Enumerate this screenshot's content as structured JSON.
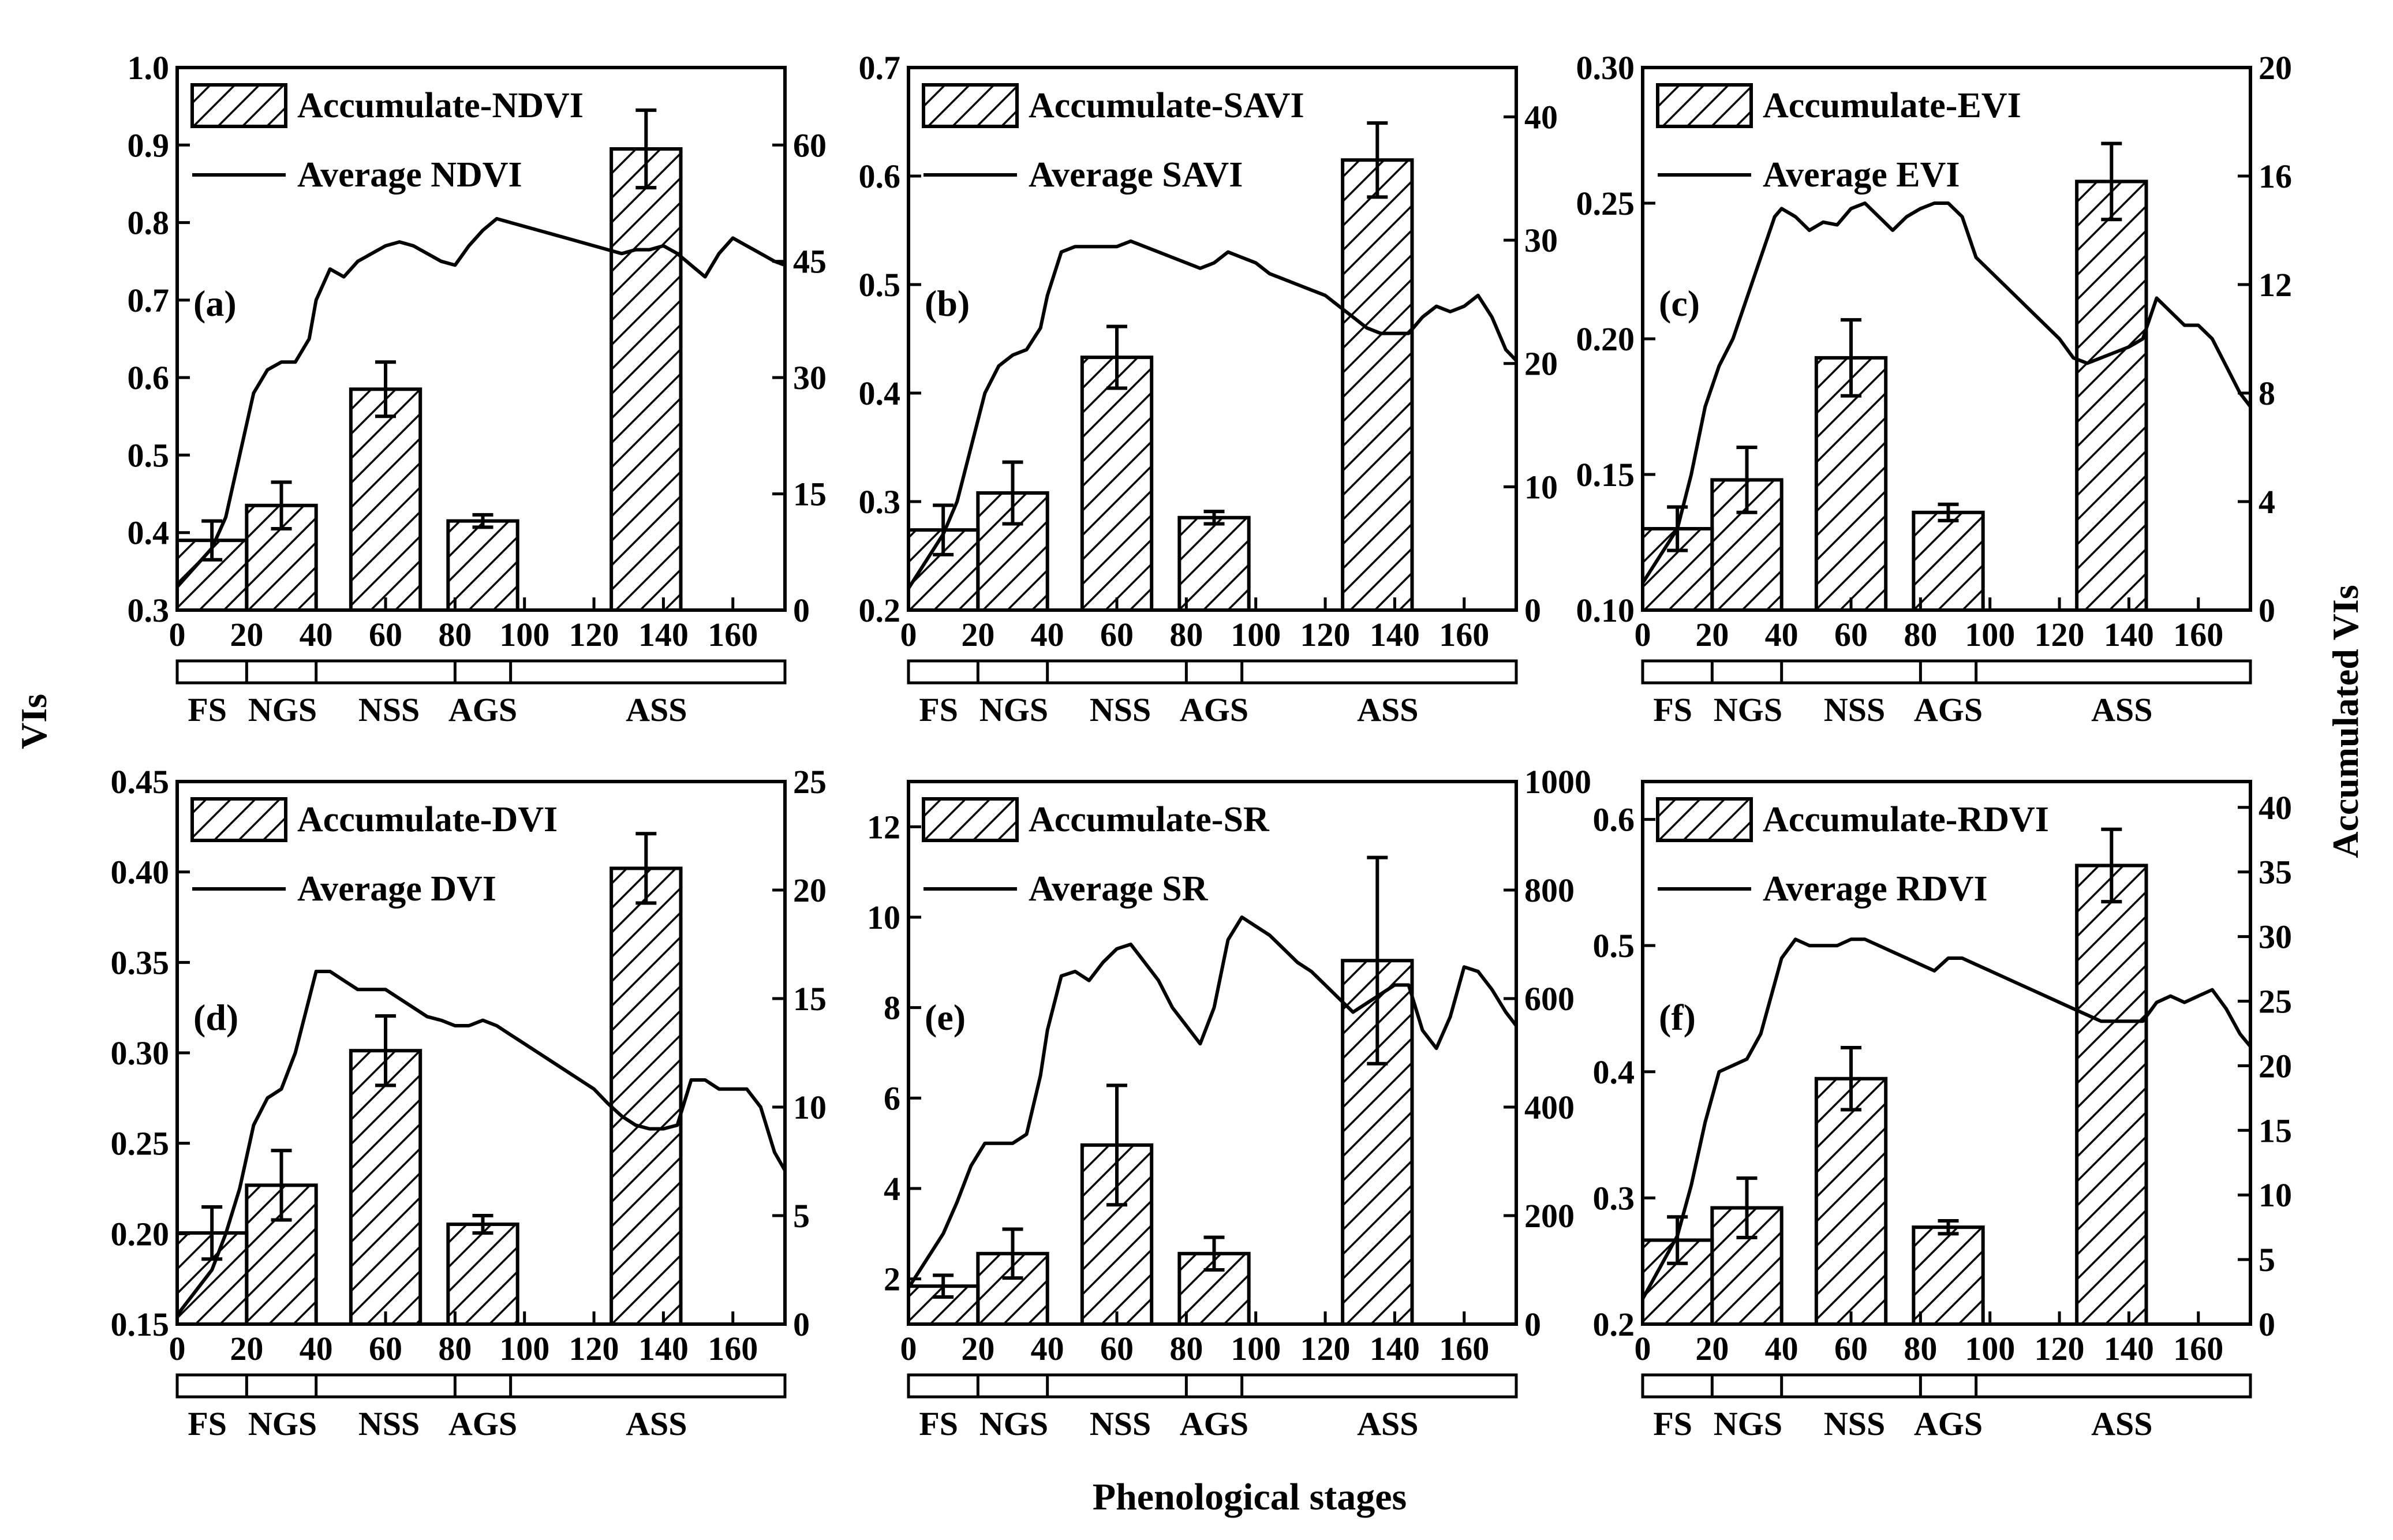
{
  "figure": {
    "global_ylabel_left": "VIs",
    "global_ylabel_right": "Accumulated VIs",
    "global_xlabel": "Phenological stages"
  },
  "stage_labels": [
    "FS",
    "NGS",
    "NSS",
    "AGS",
    "ASS"
  ],
  "stage_bounds": [
    0,
    20,
    40,
    80,
    96,
    175
  ],
  "chart_data": [
    {
      "type": "bar+line",
      "panel_label": "(a)",
      "legend": [
        "Accumulate-NDVI",
        "Average NDVI"
      ],
      "xlim": [
        0,
        175
      ],
      "xticks": [
        0,
        20,
        40,
        60,
        80,
        100,
        120,
        140,
        160
      ],
      "ylim_left": [
        0.3,
        1.0
      ],
      "yticks_left": [
        "0.3",
        "0.4",
        "0.5",
        "0.6",
        "0.7",
        "0.8",
        "0.9",
        "1.0"
      ],
      "ylim_right": [
        0,
        70
      ],
      "yticks_right": [
        "0",
        "15",
        "30",
        "45",
        "60"
      ],
      "bars": {
        "x": [
          10,
          30,
          60,
          88,
          135
        ],
        "values": [
          9.0,
          13.5,
          28.5,
          11.5,
          59.5
        ],
        "errors": [
          2.5,
          3.0,
          3.5,
          0.8,
          5.0
        ]
      },
      "line": {
        "x": [
          0,
          10,
          14,
          18,
          22,
          26,
          30,
          34,
          38,
          40,
          44,
          48,
          52,
          56,
          60,
          64,
          68,
          72,
          76,
          80,
          84,
          88,
          92,
          96,
          100,
          104,
          108,
          112,
          116,
          120,
          124,
          128,
          132,
          136,
          140,
          144,
          148,
          152,
          156,
          160,
          164,
          168,
          172,
          175
        ],
        "y": [
          0.33,
          0.38,
          0.42,
          0.5,
          0.58,
          0.61,
          0.62,
          0.62,
          0.65,
          0.7,
          0.74,
          0.73,
          0.75,
          0.76,
          0.77,
          0.775,
          0.77,
          0.76,
          0.75,
          0.745,
          0.77,
          0.79,
          0.805,
          0.8,
          0.795,
          0.79,
          0.785,
          0.78,
          0.775,
          0.77,
          0.765,
          0.76,
          0.765,
          0.765,
          0.77,
          0.76,
          0.745,
          0.73,
          0.76,
          0.78,
          0.77,
          0.76,
          0.75,
          0.745
        ]
      }
    },
    {
      "type": "bar+line",
      "panel_label": "(b)",
      "legend": [
        "Accumulate-SAVI",
        "Average SAVI"
      ],
      "xlim": [
        0,
        175
      ],
      "xticks": [
        0,
        20,
        40,
        60,
        80,
        100,
        120,
        140,
        160
      ],
      "ylim_left": [
        0.2,
        0.7
      ],
      "yticks_left": [
        "0.2",
        "0.3",
        "0.4",
        "0.5",
        "0.6",
        "0.7"
      ],
      "ylim_right": [
        0,
        44
      ],
      "yticks_right": [
        "0",
        "10",
        "20",
        "30",
        "40"
      ],
      "bars": {
        "x": [
          10,
          30,
          60,
          88,
          135
        ],
        "values": [
          6.5,
          9.5,
          20.5,
          7.5,
          36.5
        ],
        "errors": [
          2.0,
          2.5,
          2.5,
          0.5,
          3.0
        ]
      },
      "line": {
        "x": [
          0,
          10,
          14,
          18,
          22,
          26,
          30,
          34,
          38,
          40,
          44,
          48,
          52,
          56,
          60,
          64,
          68,
          72,
          76,
          80,
          84,
          88,
          92,
          96,
          100,
          104,
          108,
          112,
          116,
          120,
          124,
          128,
          132,
          136,
          140,
          144,
          148,
          152,
          156,
          160,
          164,
          168,
          172,
          175
        ],
        "y": [
          0.22,
          0.27,
          0.3,
          0.35,
          0.4,
          0.425,
          0.435,
          0.44,
          0.46,
          0.49,
          0.53,
          0.535,
          0.535,
          0.535,
          0.535,
          0.54,
          0.535,
          0.53,
          0.525,
          0.52,
          0.515,
          0.52,
          0.53,
          0.525,
          0.52,
          0.51,
          0.505,
          0.5,
          0.495,
          0.49,
          0.48,
          0.47,
          0.46,
          0.455,
          0.455,
          0.455,
          0.47,
          0.48,
          0.475,
          0.48,
          0.49,
          0.47,
          0.44,
          0.43
        ]
      }
    },
    {
      "type": "bar+line",
      "panel_label": "(c)",
      "legend": [
        "Accumulate-EVI",
        "Average EVI"
      ],
      "xlim": [
        0,
        175
      ],
      "xticks": [
        0,
        20,
        40,
        60,
        80,
        100,
        120,
        140,
        160
      ],
      "ylim_left": [
        0.1,
        0.3
      ],
      "yticks_left": [
        "0.10",
        "0.15",
        "0.20",
        "0.25",
        "0.30"
      ],
      "ylim_right": [
        0,
        20
      ],
      "yticks_right": [
        "0",
        "4",
        "8",
        "12",
        "16",
        "20"
      ],
      "bars": {
        "x": [
          10,
          30,
          60,
          88,
          135
        ],
        "values": [
          3.0,
          4.8,
          9.3,
          3.6,
          15.8
        ],
        "errors": [
          0.8,
          1.2,
          1.4,
          0.3,
          1.4
        ]
      },
      "line": {
        "x": [
          0,
          10,
          14,
          18,
          22,
          26,
          30,
          34,
          38,
          40,
          44,
          48,
          52,
          56,
          60,
          64,
          68,
          72,
          76,
          80,
          84,
          88,
          92,
          96,
          100,
          104,
          108,
          112,
          116,
          120,
          124,
          128,
          132,
          136,
          140,
          144,
          148,
          152,
          156,
          160,
          164,
          168,
          172,
          175
        ],
        "y": [
          0.11,
          0.13,
          0.15,
          0.175,
          0.19,
          0.2,
          0.215,
          0.23,
          0.245,
          0.248,
          0.245,
          0.24,
          0.243,
          0.242,
          0.248,
          0.25,
          0.245,
          0.24,
          0.245,
          0.248,
          0.25,
          0.25,
          0.245,
          0.23,
          0.225,
          0.22,
          0.215,
          0.21,
          0.205,
          0.2,
          0.193,
          0.191,
          0.193,
          0.195,
          0.197,
          0.2,
          0.215,
          0.21,
          0.205,
          0.205,
          0.2,
          0.19,
          0.18,
          0.175
        ]
      }
    },
    {
      "type": "bar+line",
      "panel_label": "(d)",
      "legend": [
        "Accumulate-DVI",
        "Average DVI"
      ],
      "xlim": [
        0,
        175
      ],
      "xticks": [
        0,
        20,
        40,
        60,
        80,
        100,
        120,
        140,
        160
      ],
      "ylim_left": [
        0.15,
        0.45
      ],
      "yticks_left": [
        "0.15",
        "0.20",
        "0.25",
        "0.30",
        "0.35",
        "0.40",
        "0.45"
      ],
      "ylim_right": [
        0,
        25
      ],
      "yticks_right": [
        "0",
        "5",
        "10",
        "15",
        "20",
        "25"
      ],
      "bars": {
        "x": [
          10,
          30,
          60,
          88,
          135
        ],
        "values": [
          4.2,
          6.4,
          12.6,
          4.6,
          21.0
        ],
        "errors": [
          1.2,
          1.6,
          1.6,
          0.4,
          1.6
        ]
      },
      "line": {
        "x": [
          0,
          10,
          14,
          18,
          22,
          26,
          30,
          34,
          38,
          40,
          44,
          48,
          52,
          56,
          60,
          64,
          68,
          72,
          76,
          80,
          84,
          88,
          92,
          96,
          100,
          104,
          108,
          112,
          116,
          120,
          124,
          128,
          132,
          136,
          140,
          144,
          148,
          152,
          156,
          160,
          164,
          168,
          172,
          175
        ],
        "y": [
          0.155,
          0.18,
          0.2,
          0.225,
          0.26,
          0.275,
          0.28,
          0.3,
          0.33,
          0.345,
          0.345,
          0.34,
          0.335,
          0.335,
          0.335,
          0.33,
          0.325,
          0.32,
          0.318,
          0.315,
          0.315,
          0.318,
          0.315,
          0.31,
          0.305,
          0.3,
          0.295,
          0.29,
          0.285,
          0.28,
          0.272,
          0.265,
          0.26,
          0.258,
          0.258,
          0.26,
          0.285,
          0.285,
          0.28,
          0.28,
          0.28,
          0.27,
          0.245,
          0.235
        ]
      }
    },
    {
      "type": "bar+line",
      "panel_label": "(e)",
      "legend": [
        "Accumulate-SR",
        "Average SR"
      ],
      "xlim": [
        0,
        175
      ],
      "xticks": [
        0,
        20,
        40,
        60,
        80,
        100,
        120,
        140,
        160
      ],
      "ylim_left": [
        1.0,
        13.0
      ],
      "yticks_left": [
        "2",
        "4",
        "6",
        "8",
        "10",
        "12"
      ],
      "ylim_right": [
        0,
        1000
      ],
      "yticks_right": [
        "0",
        "200",
        "400",
        "600",
        "800",
        "1000"
      ],
      "bars": {
        "x": [
          10,
          30,
          60,
          88,
          135
        ],
        "values": [
          70,
          130,
          330,
          130,
          670
        ],
        "errors": [
          20,
          45,
          110,
          30,
          190
        ]
      },
      "line": {
        "x": [
          0,
          10,
          14,
          18,
          22,
          26,
          30,
          34,
          38,
          40,
          44,
          48,
          52,
          56,
          60,
          64,
          68,
          72,
          76,
          80,
          84,
          88,
          92,
          96,
          100,
          104,
          108,
          112,
          116,
          120,
          124,
          128,
          132,
          136,
          140,
          144,
          148,
          152,
          156,
          160,
          164,
          168,
          172,
          175
        ],
        "y": [
          1.8,
          3.0,
          3.7,
          4.5,
          5.0,
          5.0,
          5.0,
          5.2,
          6.5,
          7.5,
          8.7,
          8.8,
          8.6,
          9.0,
          9.3,
          9.4,
          9.0,
          8.6,
          8.0,
          7.6,
          7.2,
          8.0,
          9.5,
          10.0,
          9.8,
          9.6,
          9.3,
          9.0,
          8.8,
          8.5,
          8.2,
          7.9,
          8.1,
          8.3,
          8.5,
          8.5,
          7.5,
          7.1,
          7.8,
          8.9,
          8.8,
          8.4,
          7.9,
          7.6
        ]
      }
    },
    {
      "type": "bar+line",
      "panel_label": "(f)",
      "legend": [
        "Accumulate-RDVI",
        "Average RDVI"
      ],
      "xlim": [
        0,
        175
      ],
      "xticks": [
        0,
        20,
        40,
        60,
        80,
        100,
        120,
        140,
        160
      ],
      "ylim_left": [
        0.2,
        0.63
      ],
      "yticks_left": [
        "0.2",
        "0.3",
        "0.4",
        "0.5",
        "0.6"
      ],
      "ylim_right": [
        0,
        42
      ],
      "yticks_right": [
        "0",
        "5",
        "10",
        "15",
        "20",
        "25",
        "30",
        "35",
        "40"
      ],
      "bars": {
        "x": [
          10,
          30,
          60,
          88,
          135
        ],
        "values": [
          6.5,
          9.0,
          19.0,
          7.5,
          35.5
        ],
        "errors": [
          1.8,
          2.3,
          2.4,
          0.5,
          2.8
        ]
      },
      "line": {
        "x": [
          0,
          10,
          14,
          18,
          22,
          26,
          30,
          34,
          38,
          40,
          44,
          48,
          52,
          56,
          60,
          64,
          68,
          72,
          76,
          80,
          84,
          88,
          92,
          96,
          100,
          104,
          108,
          112,
          116,
          120,
          124,
          128,
          132,
          136,
          140,
          144,
          148,
          152,
          156,
          160,
          164,
          168,
          172,
          175
        ],
        "y": [
          0.22,
          0.27,
          0.31,
          0.36,
          0.4,
          0.405,
          0.41,
          0.43,
          0.47,
          0.49,
          0.505,
          0.5,
          0.5,
          0.5,
          0.505,
          0.505,
          0.5,
          0.495,
          0.49,
          0.485,
          0.48,
          0.49,
          0.49,
          0.485,
          0.48,
          0.475,
          0.47,
          0.465,
          0.46,
          0.455,
          0.45,
          0.445,
          0.44,
          0.44,
          0.44,
          0.44,
          0.455,
          0.46,
          0.455,
          0.46,
          0.465,
          0.45,
          0.43,
          0.42
        ]
      }
    }
  ]
}
